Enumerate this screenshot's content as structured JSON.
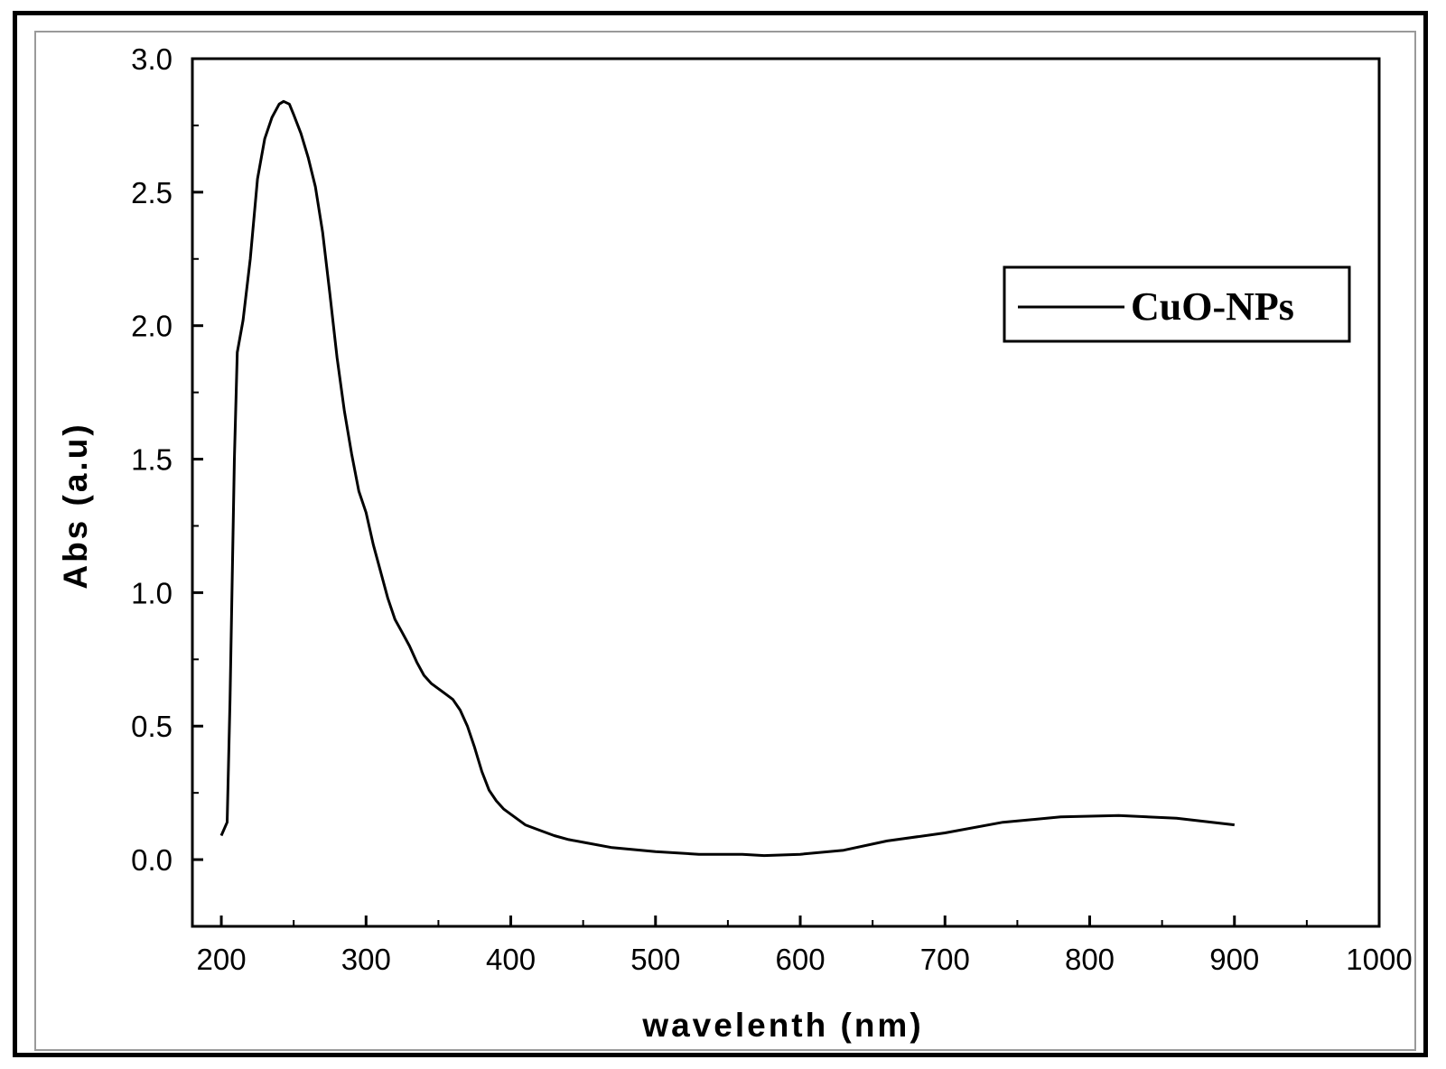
{
  "chart_data": {
    "type": "line",
    "title": "",
    "xlabel": "wavelenth (nm)",
    "ylabel": "Abs (a.u)",
    "xlim": [
      180,
      1000
    ],
    "ylim": [
      -0.25,
      3.0
    ],
    "x_ticks": [
      200,
      300,
      400,
      500,
      600,
      700,
      800,
      900,
      1000
    ],
    "x_tick_labels": [
      "200",
      "300",
      "400",
      "500",
      "600",
      "700",
      "800",
      "900",
      "1000"
    ],
    "y_ticks": [
      0.0,
      0.5,
      1.0,
      1.5,
      2.0,
      2.5,
      3.0
    ],
    "y_tick_labels": [
      "0.0",
      "0.5",
      "1.0",
      "1.5",
      "2.0",
      "2.5",
      "3.0"
    ],
    "grid": false,
    "legend_position": "top-right",
    "series": [
      {
        "name": "CuO-NPs",
        "color": "#000000",
        "x": [
          200,
          204,
          206,
          209,
          211,
          215,
          220,
          225,
          230,
          235,
          240,
          243,
          247,
          250,
          255,
          260,
          265,
          270,
          275,
          280,
          285,
          290,
          295,
          300,
          305,
          310,
          315,
          320,
          325,
          330,
          335,
          340,
          345,
          350,
          355,
          360,
          365,
          370,
          375,
          380,
          385,
          390,
          395,
          400,
          410,
          420,
          430,
          440,
          450,
          470,
          500,
          530,
          560,
          575,
          600,
          630,
          660,
          700,
          740,
          780,
          820,
          860,
          900
        ],
        "y": [
          0.09,
          0.14,
          0.6,
          1.5,
          1.9,
          2.02,
          2.25,
          2.55,
          2.7,
          2.78,
          2.83,
          2.84,
          2.83,
          2.79,
          2.72,
          2.63,
          2.52,
          2.35,
          2.12,
          1.88,
          1.68,
          1.52,
          1.38,
          1.3,
          1.18,
          1.08,
          0.98,
          0.9,
          0.85,
          0.8,
          0.74,
          0.69,
          0.66,
          0.64,
          0.62,
          0.6,
          0.56,
          0.5,
          0.42,
          0.33,
          0.26,
          0.22,
          0.19,
          0.17,
          0.13,
          0.11,
          0.09,
          0.075,
          0.065,
          0.045,
          0.03,
          0.02,
          0.02,
          0.015,
          0.02,
          0.035,
          0.07,
          0.1,
          0.14,
          0.16,
          0.165,
          0.155,
          0.13
        ]
      }
    ]
  }
}
